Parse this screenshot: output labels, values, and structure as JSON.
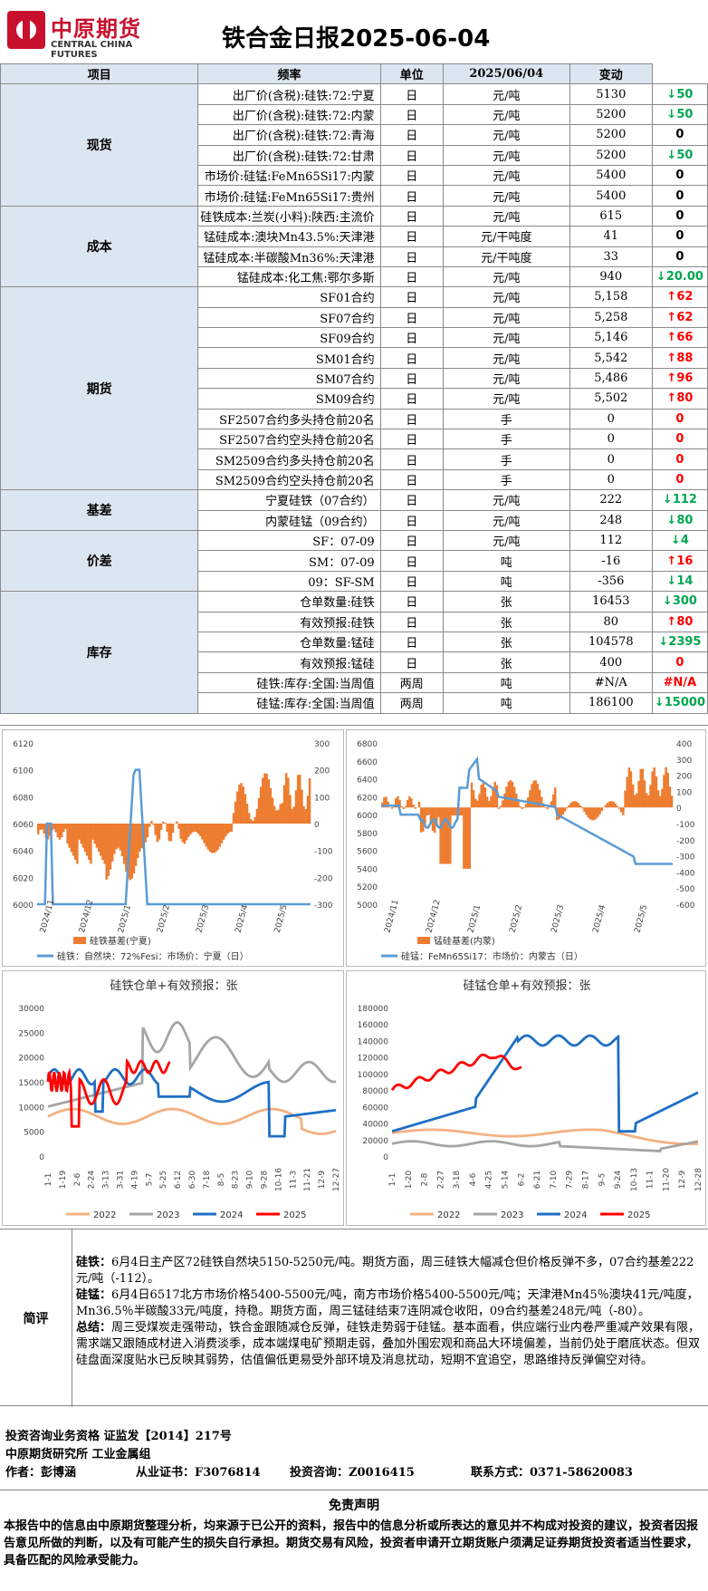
{
  "logo": {
    "cn": "中原期货",
    "en": "CENTRAL CHINA FUTURES"
  },
  "title": "铁合金日报2025-06-04",
  "table": {
    "headers": [
      "项目",
      "频率",
      "单位",
      "2025/06/04",
      "变动"
    ],
    "sections": [
      {
        "name": "现货",
        "rows": [
          {
            "item": "出厂价(含税):硅铁:72:宁夏",
            "freq": "日",
            "unit": "元/吨",
            "value": "5130",
            "change": "50",
            "dir": "down"
          },
          {
            "item": "出厂价(含税):硅铁:72:内蒙",
            "freq": "日",
            "unit": "元/吨",
            "value": "5200",
            "change": "50",
            "dir": "down"
          },
          {
            "item": "出厂价(含税):硅铁:72:青海",
            "freq": "日",
            "unit": "元/吨",
            "value": "5200",
            "change": "0",
            "dir": "zero"
          },
          {
            "item": "出厂价(含税):硅铁:72:甘肃",
            "freq": "日",
            "unit": "元/吨",
            "value": "5200",
            "change": "50",
            "dir": "down"
          },
          {
            "item": "市场价:硅锰:FeMn65Si17:内蒙",
            "freq": "日",
            "unit": "元/吨",
            "value": "5400",
            "change": "0",
            "dir": "zero"
          },
          {
            "item": "市场价:硅锰:FeMn65Si17:贵州",
            "freq": "日",
            "unit": "元/吨",
            "value": "5400",
            "change": "0",
            "dir": "zero"
          }
        ]
      },
      {
        "name": "成本",
        "rows": [
          {
            "item": "硅铁成本:兰炭(小料):陕西:主流价",
            "freq": "日",
            "unit": "元/吨",
            "value": "615",
            "change": "0",
            "dir": "zero"
          },
          {
            "item": "锰硅成本:澳块Mn43.5%:天津港",
            "freq": "日",
            "unit": "元/干吨度",
            "value": "41",
            "change": "0",
            "dir": "zero"
          },
          {
            "item": "锰硅成本:半碳酸Mn36%:天津港",
            "freq": "日",
            "unit": "元/干吨度",
            "value": "33",
            "change": "0",
            "dir": "zero"
          },
          {
            "item": "锰硅成本:化工焦:鄂尔多斯",
            "freq": "日",
            "unit": "元/吨",
            "value": "940",
            "change": "20.00",
            "dir": "down"
          }
        ]
      },
      {
        "name": "期货",
        "rows": [
          {
            "item": "SF01合约",
            "freq": "日",
            "unit": "元/吨",
            "value": "5,158",
            "change": "62",
            "dir": "up"
          },
          {
            "item": "SF07合约",
            "freq": "日",
            "unit": "元/吨",
            "value": "5,258",
            "change": "62",
            "dir": "up"
          },
          {
            "item": "SF09合约",
            "freq": "日",
            "unit": "元/吨",
            "value": "5,146",
            "change": "66",
            "dir": "up"
          },
          {
            "item": "SM01合约",
            "freq": "日",
            "unit": "元/吨",
            "value": "5,542",
            "change": "88",
            "dir": "up"
          },
          {
            "item": "SM07合约",
            "freq": "日",
            "unit": "元/吨",
            "value": "5,486",
            "change": "96",
            "dir": "up"
          },
          {
            "item": "SM09合约",
            "freq": "日",
            "unit": "元/吨",
            "value": "5,502",
            "change": "80",
            "dir": "up"
          },
          {
            "item": "SF2507合约多头持仓前20名",
            "freq": "日",
            "unit": "手",
            "value": "0",
            "change": "0",
            "dir": "zeror"
          },
          {
            "item": "SF2507合约空头持仓前20名",
            "freq": "日",
            "unit": "手",
            "value": "0",
            "change": "0",
            "dir": "zeror"
          },
          {
            "item": "SM2509合约多头持仓前20名",
            "freq": "日",
            "unit": "手",
            "value": "0",
            "change": "0",
            "dir": "zeror"
          },
          {
            "item": "SM2509合约空头持仓前20名",
            "freq": "日",
            "unit": "手",
            "value": "0",
            "change": "0",
            "dir": "zeror"
          }
        ]
      },
      {
        "name": "基差",
        "rows": [
          {
            "item": "宁夏硅铁（07合约）",
            "freq": "日",
            "unit": "元/吨",
            "value": "222",
            "change": "112",
            "dir": "down"
          },
          {
            "item": "内蒙硅锰（09合约）",
            "freq": "日",
            "unit": "元/吨",
            "value": "248",
            "change": "80",
            "dir": "down"
          }
        ]
      },
      {
        "name": "价差",
        "rows": [
          {
            "item": "SF：07-09",
            "freq": "日",
            "unit": "元/吨",
            "value": "112",
            "change": "4",
            "dir": "down"
          },
          {
            "item": "SM：07-09",
            "freq": "日",
            "unit": "吨",
            "value": "-16",
            "change": "16",
            "dir": "up"
          },
          {
            "item": "09：SF-SM",
            "freq": "日",
            "unit": "吨",
            "value": "-356",
            "change": "14",
            "dir": "down"
          }
        ]
      },
      {
        "name": "库存",
        "rows": [
          {
            "item": "仓单数量:硅铁",
            "freq": "日",
            "unit": "张",
            "value": "16453",
            "change": "300",
            "dir": "down"
          },
          {
            "item": "有效预报:硅铁",
            "freq": "日",
            "unit": "张",
            "value": "80",
            "change": "80",
            "dir": "up"
          },
          {
            "item": "仓单数量:锰硅",
            "freq": "日",
            "unit": "张",
            "value": "104578",
            "change": "2395",
            "dir": "down"
          },
          {
            "item": "有效预报:锰硅",
            "freq": "日",
            "unit": "张",
            "value": "400",
            "change": "0",
            "dir": "zeror"
          },
          {
            "item": "硅铁:库存:全国:当周值",
            "freq": "两周",
            "unit": "吨",
            "value": "#N/A",
            "change": "#N/A",
            "dir": "upna"
          },
          {
            "item": "硅锰:库存:全国:当周值",
            "freq": "两周",
            "unit": "吨",
            "value": "186100",
            "change": "15000",
            "dir": "down"
          }
        ]
      }
    ]
  },
  "chart_data": [
    {
      "type": "area",
      "title": "",
      "x_ticks": [
        "2024/11",
        "2024/12",
        "2025/1",
        "2025/2",
        "2025/3",
        "2025/4",
        "2025/5"
      ],
      "ylim_left": [
        6000,
        6120
      ],
      "ylim_right": [
        -300,
        300
      ],
      "y_ticks_left": [
        "6120",
        "6100",
        "6080",
        "6060",
        "6040",
        "6020",
        "6000"
      ],
      "y_ticks_right": [
        "300",
        "200",
        "100",
        "0",
        "-100",
        "-200",
        "-300"
      ],
      "series": [
        {
          "name": "硅铁基差(宁夏)",
          "color": "#ed7d31"
        },
        {
          "name": "硅铁：自然块：72%Fesi：市场价：宁夏（日）",
          "color": "#5b9bd5"
        }
      ]
    },
    {
      "type": "area",
      "title": "",
      "x_ticks": [
        "2024/11",
        "2024/12",
        "2025/1",
        "2025/2",
        "2025/3",
        "2025/4",
        "2025/5"
      ],
      "ylim_left": [
        5000,
        6800
      ],
      "ylim_right": [
        -600,
        400
      ],
      "y_ticks_left": [
        "6800",
        "6600",
        "6400",
        "6200",
        "6000",
        "5800",
        "5600",
        "5400",
        "5200",
        "5000"
      ],
      "y_ticks_right": [
        "400",
        "300",
        "200",
        "100",
        "0",
        "-100",
        "-200",
        "-300",
        "-400",
        "-500",
        "-600"
      ],
      "series": [
        {
          "name": "锰硅基差(内蒙)",
          "color": "#ed7d31"
        },
        {
          "name": "硅锰：FeMn65Si17：市场价：内蒙古（日）",
          "color": "#5b9bd5"
        }
      ]
    },
    {
      "type": "line",
      "title": "硅铁仓单+有效预报：张",
      "ylim": [
        0,
        30000
      ],
      "y_ticks": [
        "30000",
        "25000",
        "20000",
        "15000",
        "10000",
        "5000",
        "0"
      ],
      "x_ticks": [
        "1-1",
        "1-19",
        "2-6",
        "2-24",
        "3-13",
        "3-31",
        "4-19",
        "5-7",
        "5-25",
        "6-12",
        "6-30",
        "7-18",
        "8-5",
        "8-23",
        "9-10",
        "9-28",
        "10-16",
        "11-3",
        "11-21",
        "12-9",
        "12-27"
      ],
      "series": [
        {
          "name": "2022",
          "color": "#f4b183"
        },
        {
          "name": "2023",
          "color": "#a5a5a5"
        },
        {
          "name": "2024",
          "color": "#1f6fc5"
        },
        {
          "name": "2025",
          "color": "#ff0000"
        }
      ]
    },
    {
      "type": "line",
      "title": "硅锰仓单+有效预报：张",
      "ylim": [
        0,
        180000
      ],
      "y_ticks": [
        "180000",
        "160000",
        "140000",
        "120000",
        "100000",
        "80000",
        "60000",
        "40000",
        "20000",
        "0"
      ],
      "x_ticks": [
        "1-1",
        "1-20",
        "2-8",
        "2-27",
        "3-18",
        "4-6",
        "4-25",
        "5-14",
        "6-2",
        "6-21",
        "7-10",
        "7-29",
        "8-17",
        "9-5",
        "9-24",
        "10-13",
        "11-1",
        "11-20",
        "12-9",
        "12-28"
      ],
      "series": [
        {
          "name": "2022",
          "color": "#f4b183"
        },
        {
          "name": "2023",
          "color": "#a5a5a5"
        },
        {
          "name": "2024",
          "color": "#1f6fc5"
        },
        {
          "name": "2025",
          "color": "#ff0000"
        }
      ]
    }
  ],
  "comments": {
    "label": "简评",
    "p1_head": "硅铁：",
    "p1": "6月4日主产区72硅铁自然块5150-5250元/吨。期货方面，周三硅铁大幅减仓但价格反弹不多，07合约基差222元/吨（-112）。",
    "p2_head": "硅锰：",
    "p2": "6月4日6517北方市场价格5400-5500元/吨，南方市场价格5400-5500元/吨；天津港Mn45％澳块41元/吨度，Mn36.5％半碳酸33元/吨度，持稳。期货方面，周三锰硅结束7连阴减仓收阳，09合约基差248元/吨（-80）。",
    "p3_head": "总结：",
    "p3": "周三受煤炭走强带动，铁合金跟随减仓反弹，硅铁走势弱于硅锰。基本面看，供应端行业内卷严重减产效果有限，需求端又跟随成材进入消费淡季，成本端煤电矿预期走弱，叠加外围宏观和商品大环境偏差，当前仍处于磨底状态。但双硅盘面深度贴水已反映其弱势，估值偏低更易受外部环境及消息扰动，短期不宜追空，思路维持反弹偏空对待。"
  },
  "info": {
    "line1": "投资咨询业务资格   证监发【2014】217号",
    "line2": "中原期货研究所     工业金属组",
    "author": "作者：彭博涵",
    "cert": "从业证书：F3076814",
    "advisory": "投资咨询：Z0016415",
    "contact": "联系方式：0371-58620083"
  },
  "disclaimer": {
    "head": "免责声明",
    "body": "本报告中的信息由中原期货整理分析，均来源于已公开的资料，报告中的信息分析或所表达的意见并不构成对投资的建议，投资者因报告意见所做的判断，以及有可能产生的损失自行承担。期货交易有风险，投资者申请开立期货账户须满足证券期货投资者适当性要求，具备匹配的风险承受能力。"
  }
}
